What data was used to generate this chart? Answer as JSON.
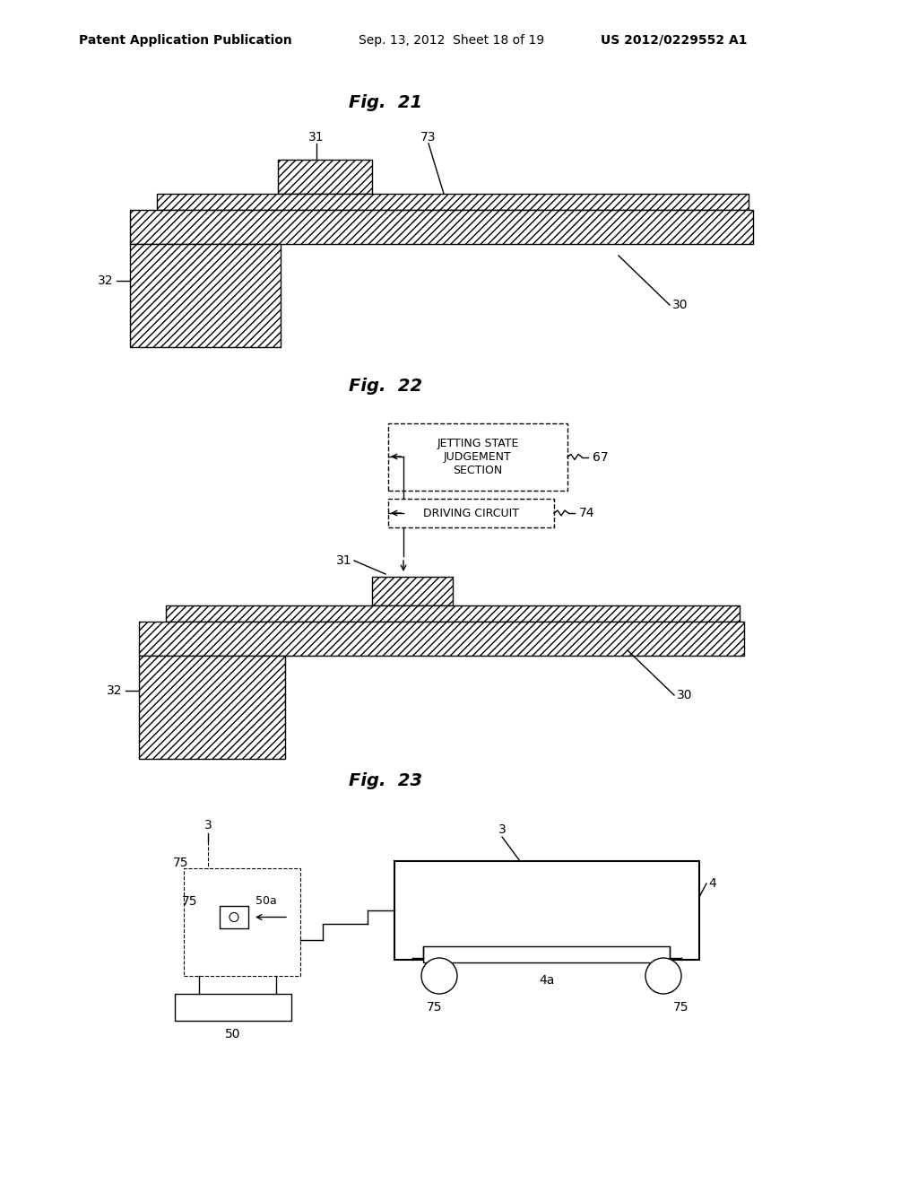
{
  "bg_color": "#ffffff",
  "header_left": "Patent Application Publication",
  "header_mid": "Sep. 13, 2012  Sheet 18 of 19",
  "header_right": "US 2012/0229552 A1",
  "fig21_title": "Fig.  21",
  "fig22_title": "Fig.  22",
  "fig23_title": "Fig.  23",
  "box1_text": "JETTING STATE\nJUDGEMENT\nSECTION",
  "box2_text": "DRIVING CIRCUIT"
}
